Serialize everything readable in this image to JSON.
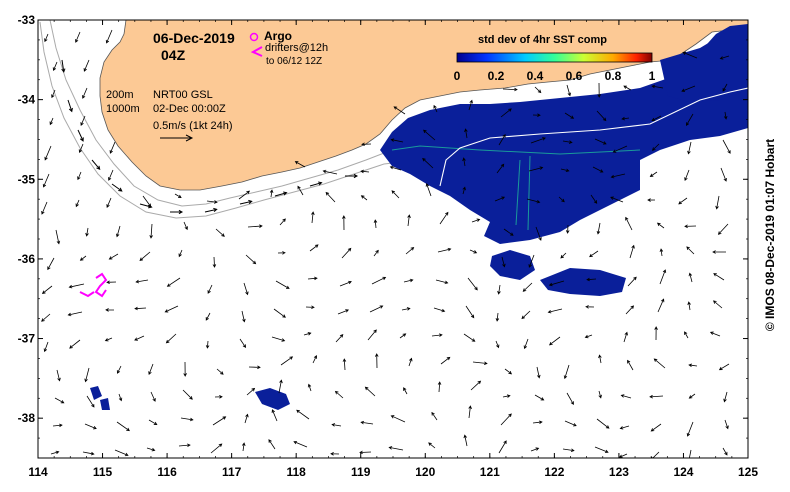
{
  "header": {
    "date": "06-Dec-2019",
    "time": "04Z"
  },
  "legend": {
    "argo_label": "Argo",
    "drifter_label_1": "drifters@12h",
    "drifter_label_2": "to 06/12 12Z",
    "argo_color": "#ff00ff",
    "drifter_color": "#ff00ff"
  },
  "info": {
    "depth_200": "200m",
    "depth_1000": "1000m",
    "product": "NRT00 GSL",
    "analysis_date": "02-Dec 00:00Z",
    "scale_label": "0.5m/s (1kt 24h)"
  },
  "colorbar": {
    "title": "std dev of 4hr SST comp",
    "ticks": [
      "0",
      "0.2",
      "0.4",
      "0.6",
      "0.8",
      "1"
    ],
    "range": [
      0,
      1
    ]
  },
  "credit": "© IMOS 08-Dec-2019 01:07 Hobart",
  "axes": {
    "x_ticks": [
      "114",
      "115",
      "116",
      "117",
      "118",
      "119",
      "120",
      "121",
      "122",
      "123",
      "124",
      "125"
    ],
    "y_ticks": [
      "-33",
      "-34",
      "-35",
      "-36",
      "-37",
      "-38"
    ],
    "lon_range": [
      114,
      125
    ],
    "lat_range": [
      -38.5,
      -33
    ]
  },
  "colors": {
    "land": "#fcc995",
    "sst_low": "#0a1f9a",
    "contour": "#aaaaaa"
  }
}
